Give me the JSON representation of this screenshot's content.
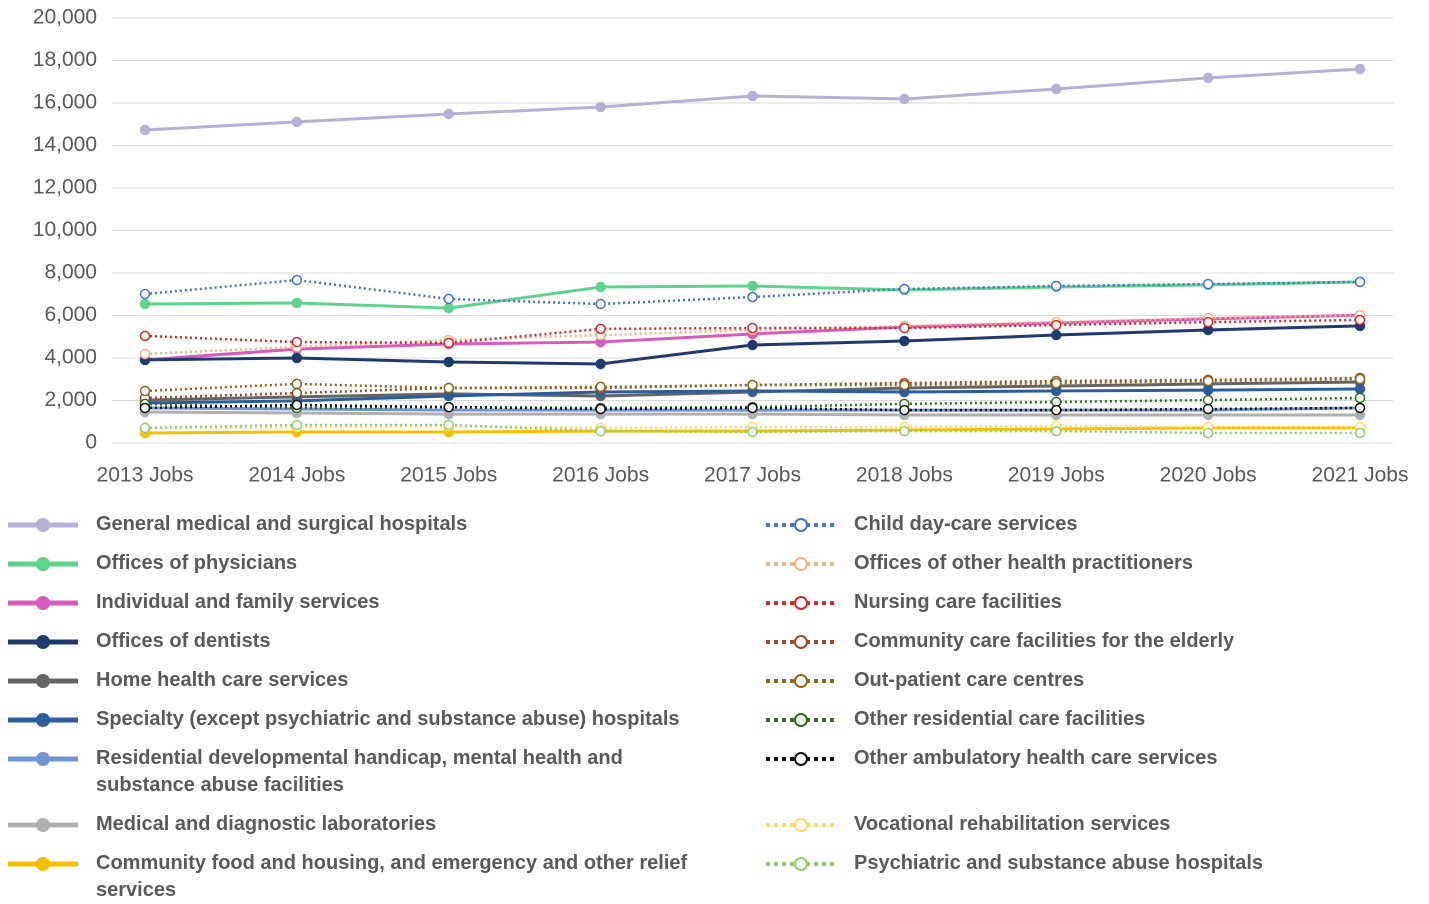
{
  "chart_data": {
    "type": "line",
    "categories": [
      "2013 Jobs",
      "2014 Jobs",
      "2015 Jobs",
      "2016 Jobs",
      "2017 Jobs",
      "2018 Jobs",
      "2019 Jobs",
      "2020 Jobs",
      "2021 Jobs"
    ],
    "ylim": [
      0,
      20000
    ],
    "yticks": [
      {
        "value": 0,
        "label": "0"
      },
      {
        "value": 2000,
        "label": "2,000"
      },
      {
        "value": 4000,
        "label": "4,000"
      },
      {
        "value": 6000,
        "label": "6,000"
      },
      {
        "value": 8000,
        "label": "8,000"
      },
      {
        "value": 10000,
        "label": "10,000"
      },
      {
        "value": 12000,
        "label": "12,000"
      },
      {
        "value": 14000,
        "label": "14,000"
      },
      {
        "value": 16000,
        "label": "16,000"
      },
      {
        "value": 18000,
        "label": "18,000"
      },
      {
        "value": 20000,
        "label": "20,000"
      }
    ],
    "grid": true,
    "legend": "bottom",
    "series": [
      {
        "name": "General medical and surgical hospitals",
        "color": "#b4b1d9",
        "style": "solid",
        "values": [
          14730,
          15110,
          15480,
          15810,
          16330,
          16190,
          16660,
          17180,
          17600
        ]
      },
      {
        "name": "Offices of physicians",
        "color": "#5ed38c",
        "style": "solid",
        "values": [
          6540,
          6590,
          6350,
          7340,
          7390,
          7200,
          7340,
          7440,
          7580
        ]
      },
      {
        "name": "Individual and family services",
        "color": "#d65bbd",
        "style": "solid",
        "values": [
          3910,
          4420,
          4660,
          4750,
          5130,
          5460,
          5650,
          5840,
          6020
        ]
      },
      {
        "name": "Offices of dentists",
        "color": "#1f3a6e",
        "style": "solid",
        "values": [
          3910,
          4000,
          3810,
          3720,
          4610,
          4800,
          5080,
          5320,
          5510
        ]
      },
      {
        "name": "Home health care services",
        "color": "#646464",
        "style": "solid",
        "values": [
          2020,
          2170,
          2310,
          2210,
          2400,
          2590,
          2680,
          2780,
          2870
        ]
      },
      {
        "name": "Specialty (except psychiatric and substance abuse) hospitals",
        "color": "#2a5d9c",
        "style": "solid",
        "values": [
          1880,
          1980,
          2210,
          2400,
          2450,
          2400,
          2450,
          2490,
          2540
        ]
      },
      {
        "name": "Residential developmental handicap, mental health and substance abuse facilities",
        "color": "#6e95d6",
        "style": "solid",
        "values": [
          1650,
          1600,
          1550,
          1550,
          1550,
          1550,
          1550,
          1550,
          1650
        ]
      },
      {
        "name": "Medical and diagnostic laboratories",
        "color": "#b0b0b0",
        "style": "solid",
        "values": [
          1460,
          1410,
          1360,
          1360,
          1360,
          1320,
          1320,
          1320,
          1320
        ]
      },
      {
        "name": "Community food and housing, and emergency and other relief services",
        "color": "#f5c000",
        "style": "solid",
        "values": [
          470,
          520,
          520,
          560,
          560,
          610,
          660,
          710,
          710
        ]
      },
      {
        "name": "Child day-care services",
        "color": "#4472c4",
        "style": "dotted",
        "values": [
          7010,
          7670,
          6780,
          6540,
          6870,
          7250,
          7390,
          7480,
          7580
        ]
      },
      {
        "name": "Offices of other health practitioners",
        "color": "#f4b183",
        "style": "dotted",
        "values": [
          4190,
          4520,
          4850,
          5080,
          5320,
          5510,
          5690,
          5880,
          6020
        ]
      },
      {
        "name": "Nursing care facilities",
        "color": "#d62728",
        "style": "dotted",
        "values": [
          5040,
          4750,
          4710,
          5370,
          5410,
          5410,
          5550,
          5690,
          5790
        ]
      },
      {
        "name": "Community care facilities for the elderly",
        "color": "#9c4a24",
        "style": "dotted",
        "values": [
          2120,
          2350,
          2590,
          2590,
          2730,
          2820,
          2920,
          2970,
          3060
        ]
      },
      {
        "name": "Out-patient care centres",
        "color": "#8b6914",
        "style": "dotted",
        "values": [
          2450,
          2780,
          2590,
          2640,
          2730,
          2730,
          2820,
          2920,
          3010
        ]
      },
      {
        "name": "Other residential care facilities",
        "color": "#2e6b1f",
        "style": "dotted",
        "values": [
          1840,
          1650,
          1690,
          1650,
          1690,
          1840,
          1930,
          2020,
          2120
        ]
      },
      {
        "name": "Other ambulatory health care services",
        "color": "#111111",
        "style": "dotted",
        "values": [
          1650,
          1790,
          1690,
          1600,
          1650,
          1550,
          1550,
          1600,
          1650
        ]
      },
      {
        "name": "Vocational rehabilitation services",
        "color": "#ffd966",
        "style": "dotted",
        "values": [
          710,
          750,
          800,
          710,
          750,
          750,
          800,
          750,
          750
        ]
      },
      {
        "name": "Psychiatric and substance abuse hospitals",
        "color": "#8fce6a",
        "style": "dotted",
        "values": [
          710,
          850,
          850,
          560,
          520,
          560,
          560,
          470,
          470
        ]
      }
    ]
  }
}
